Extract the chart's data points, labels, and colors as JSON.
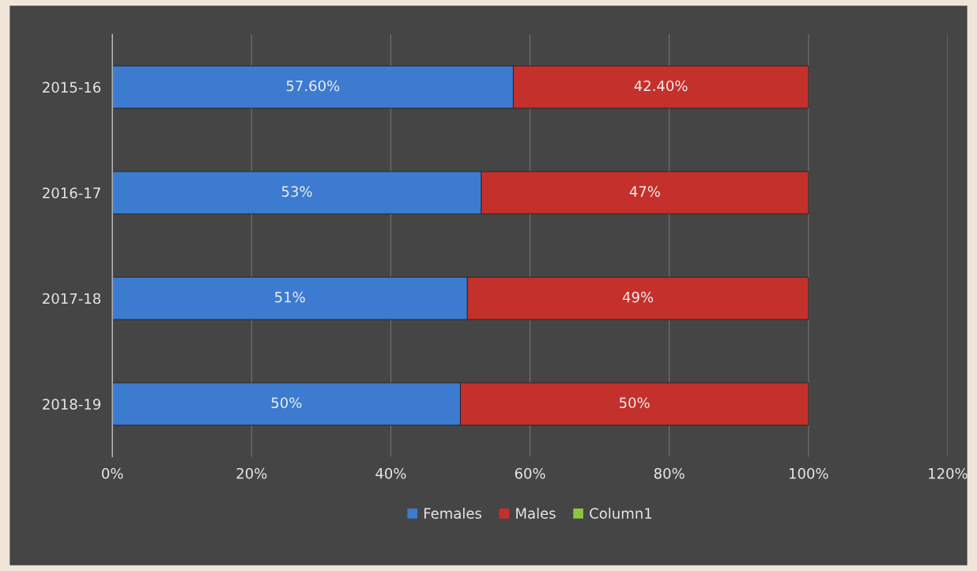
{
  "chart_data": {
    "type": "bar",
    "orientation": "horizontal",
    "stacked": true,
    "categories": [
      "2015-16",
      "2016-17",
      "2017-18",
      "2018-19"
    ],
    "series": [
      {
        "name": "Females",
        "color": "#3c7bd0",
        "values": [
          0.576,
          0.53,
          0.51,
          0.5
        ],
        "value_labels": [
          "57.60%",
          "53%",
          "51%",
          "50%"
        ]
      },
      {
        "name": "Males",
        "color": "#c4302b",
        "values": [
          0.424,
          0.47,
          0.49,
          0.5
        ],
        "value_labels": [
          "42.40%",
          "47%",
          "49%",
          "50%"
        ]
      },
      {
        "name": "Column1",
        "color": "#8cc63f",
        "values": [
          null,
          null,
          null,
          null
        ]
      }
    ],
    "xlim": [
      0,
      1.2
    ],
    "xticks": [
      {
        "value": 0,
        "label": "0%"
      },
      {
        "value": 0.2,
        "label": "20%"
      },
      {
        "value": 0.4,
        "label": "40%"
      },
      {
        "value": 0.6,
        "label": "60%"
      },
      {
        "value": 0.8,
        "label": "80%"
      },
      {
        "value": 1.0,
        "label": "100%"
      },
      {
        "value": 1.2,
        "label": "120%"
      }
    ],
    "grid": "x",
    "legend": "bottom"
  }
}
